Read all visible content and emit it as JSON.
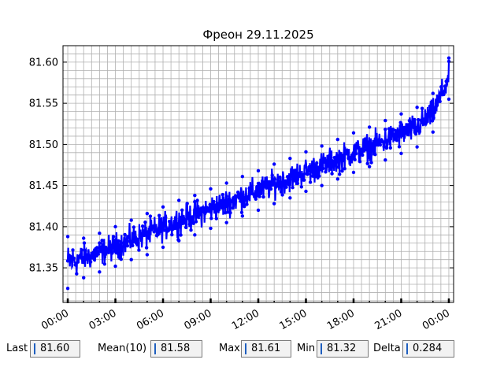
{
  "chart_data": {
    "type": "scatter",
    "title": "Фреон 29.11.2025",
    "xlabel": "",
    "ylabel": "",
    "x_ticks": [
      "00:00",
      "03:00",
      "06:00",
      "09:00",
      "12:00",
      "15:00",
      "18:00",
      "21:00",
      "00:00"
    ],
    "xlim_hours": [
      -0.3,
      24.3
    ],
    "y_ticks": [
      81.35,
      81.4,
      81.45,
      81.5,
      81.55,
      81.6
    ],
    "ylim": [
      81.308,
      81.62
    ],
    "grid": true,
    "series": [
      {
        "color": "#0000ff",
        "x_hours": [
          0.0,
          1.0,
          2.0,
          3.0,
          4.0,
          5.0,
          6.0,
          7.0,
          8.0,
          9.0,
          10.0,
          11.0,
          12.0,
          13.0,
          14.0,
          15.0,
          16.0,
          17.0,
          18.0,
          19.0,
          20.0,
          21.0,
          22.0,
          23.0,
          24.0
        ],
        "center": [
          81.358,
          81.363,
          81.369,
          81.376,
          81.384,
          81.391,
          81.399,
          81.407,
          81.414,
          81.422,
          81.429,
          81.437,
          81.444,
          81.452,
          81.459,
          81.467,
          81.474,
          81.482,
          81.49,
          81.497,
          81.505,
          81.513,
          81.521,
          81.538,
          81.577
        ],
        "band_low": [
          81.325,
          81.338,
          81.345,
          81.352,
          81.36,
          81.366,
          81.375,
          81.383,
          81.39,
          81.398,
          81.405,
          81.413,
          81.42,
          81.428,
          81.435,
          81.443,
          81.45,
          81.458,
          81.466,
          81.473,
          81.481,
          81.489,
          81.497,
          81.515,
          81.555
        ],
        "band_high": [
          81.388,
          81.386,
          81.392,
          81.4,
          81.408,
          81.416,
          81.424,
          81.432,
          81.438,
          81.446,
          81.453,
          81.461,
          81.468,
          81.476,
          81.483,
          81.491,
          81.498,
          81.506,
          81.514,
          81.521,
          81.529,
          81.537,
          81.545,
          81.562,
          81.605
        ]
      }
    ]
  },
  "stats": {
    "last_label": "Last",
    "last_value": "81.60",
    "mean_label": "Mean(10)",
    "mean_value": "81.58",
    "max_label": "Max",
    "max_value": "81.61",
    "min_label": "Min",
    "min_value": "81.32",
    "delta_label": "Delta",
    "delta_value": "0.284"
  }
}
